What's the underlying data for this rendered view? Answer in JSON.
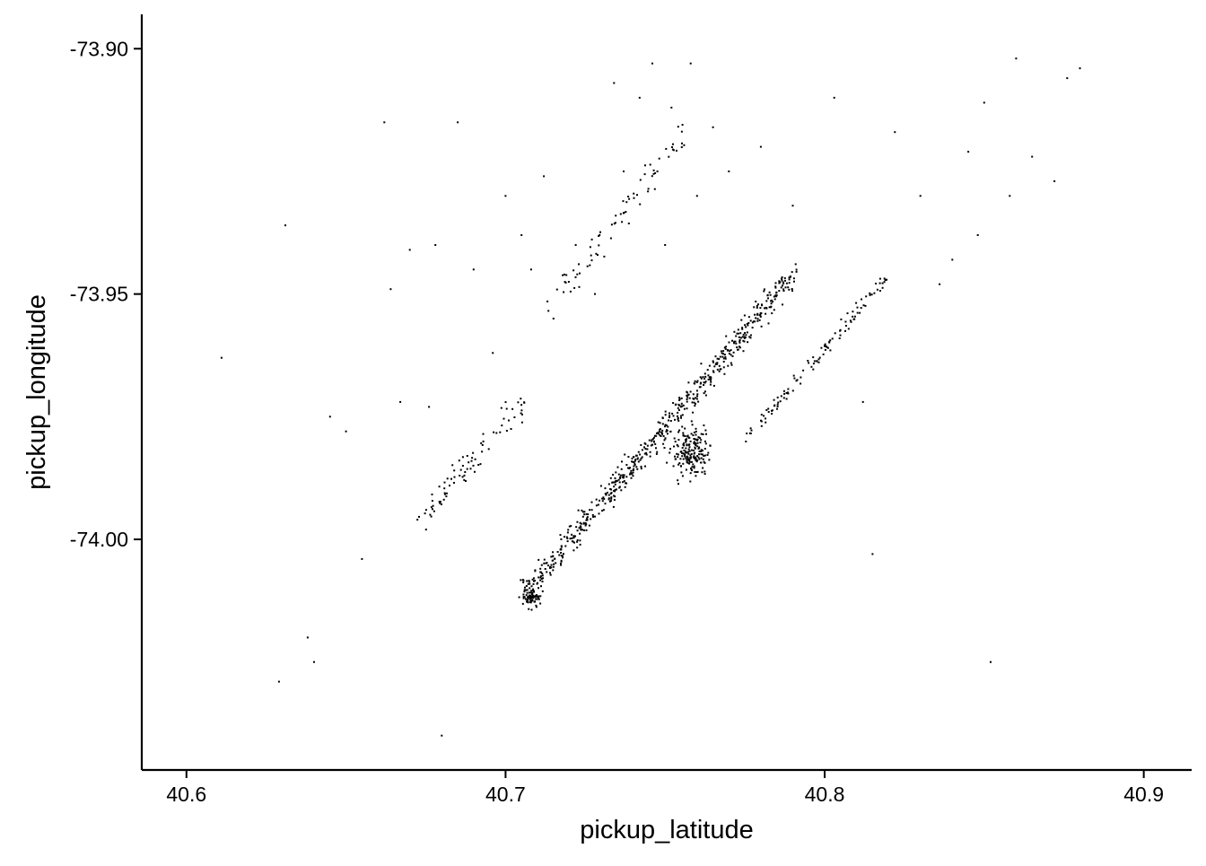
{
  "chart_data": {
    "type": "scatter",
    "title": "",
    "xlabel": "pickup_latitude",
    "ylabel": "pickup_longitude",
    "xlim": [
      40.586,
      40.915
    ],
    "ylim": [
      -74.047,
      -73.893
    ],
    "xticks": [
      40.6,
      40.7,
      40.8,
      40.9
    ],
    "xtick_labels": [
      "40.6",
      "40.7",
      "40.8",
      "40.9"
    ],
    "yticks": [
      -73.9,
      -73.95,
      -74.0
    ],
    "ytick_labels": [
      "-73.90",
      "-73.95",
      "-74.00"
    ],
    "grid": false,
    "legend": "none",
    "marker_color": "#000000",
    "approx_point_count": 1200,
    "series": [
      {
        "values": [
          [
            40.611,
            -73.963
          ],
          [
            40.629,
            -74.029
          ],
          [
            40.631,
            -73.936
          ],
          [
            40.638,
            -74.02
          ],
          [
            40.64,
            -74.025
          ],
          [
            40.645,
            -73.975
          ],
          [
            40.65,
            -73.978
          ],
          [
            40.655,
            -74.004
          ],
          [
            40.662,
            -73.915
          ],
          [
            40.664,
            -73.949
          ],
          [
            40.667,
            -73.972
          ],
          [
            40.67,
            -73.941
          ],
          [
            40.676,
            -73.973
          ],
          [
            40.678,
            -73.94
          ],
          [
            40.68,
            -74.04
          ],
          [
            40.685,
            -73.915
          ],
          [
            40.69,
            -73.945
          ],
          [
            40.696,
            -73.962
          ],
          [
            40.7,
            -73.93
          ],
          [
            40.705,
            -73.938
          ],
          [
            40.708,
            -73.945
          ],
          [
            40.712,
            -73.926
          ],
          [
            40.715,
            -73.955
          ],
          [
            40.722,
            -73.94
          ],
          [
            40.728,
            -73.95
          ],
          [
            40.734,
            -73.907
          ],
          [
            40.737,
            -73.925
          ],
          [
            40.742,
            -73.91
          ],
          [
            40.746,
            -73.903
          ],
          [
            40.75,
            -73.94
          ],
          [
            40.752,
            -73.912
          ],
          [
            40.758,
            -73.903
          ],
          [
            40.76,
            -73.93
          ],
          [
            40.765,
            -73.916
          ],
          [
            40.77,
            -73.925
          ],
          [
            40.78,
            -73.92
          ],
          [
            40.79,
            -73.932
          ],
          [
            40.803,
            -73.91
          ],
          [
            40.812,
            -73.972
          ],
          [
            40.815,
            -74.003
          ],
          [
            40.822,
            -73.917
          ],
          [
            40.83,
            -73.93
          ],
          [
            40.836,
            -73.948
          ],
          [
            40.84,
            -73.943
          ],
          [
            40.845,
            -73.921
          ],
          [
            40.848,
            -73.938
          ],
          [
            40.85,
            -73.911
          ],
          [
            40.852,
            -74.025
          ],
          [
            40.858,
            -73.93
          ],
          [
            40.86,
            -73.902
          ],
          [
            40.865,
            -73.922
          ],
          [
            40.872,
            -73.927
          ],
          [
            40.876,
            -73.906
          ],
          [
            40.88,
            -73.904
          ]
        ]
      }
    ]
  }
}
